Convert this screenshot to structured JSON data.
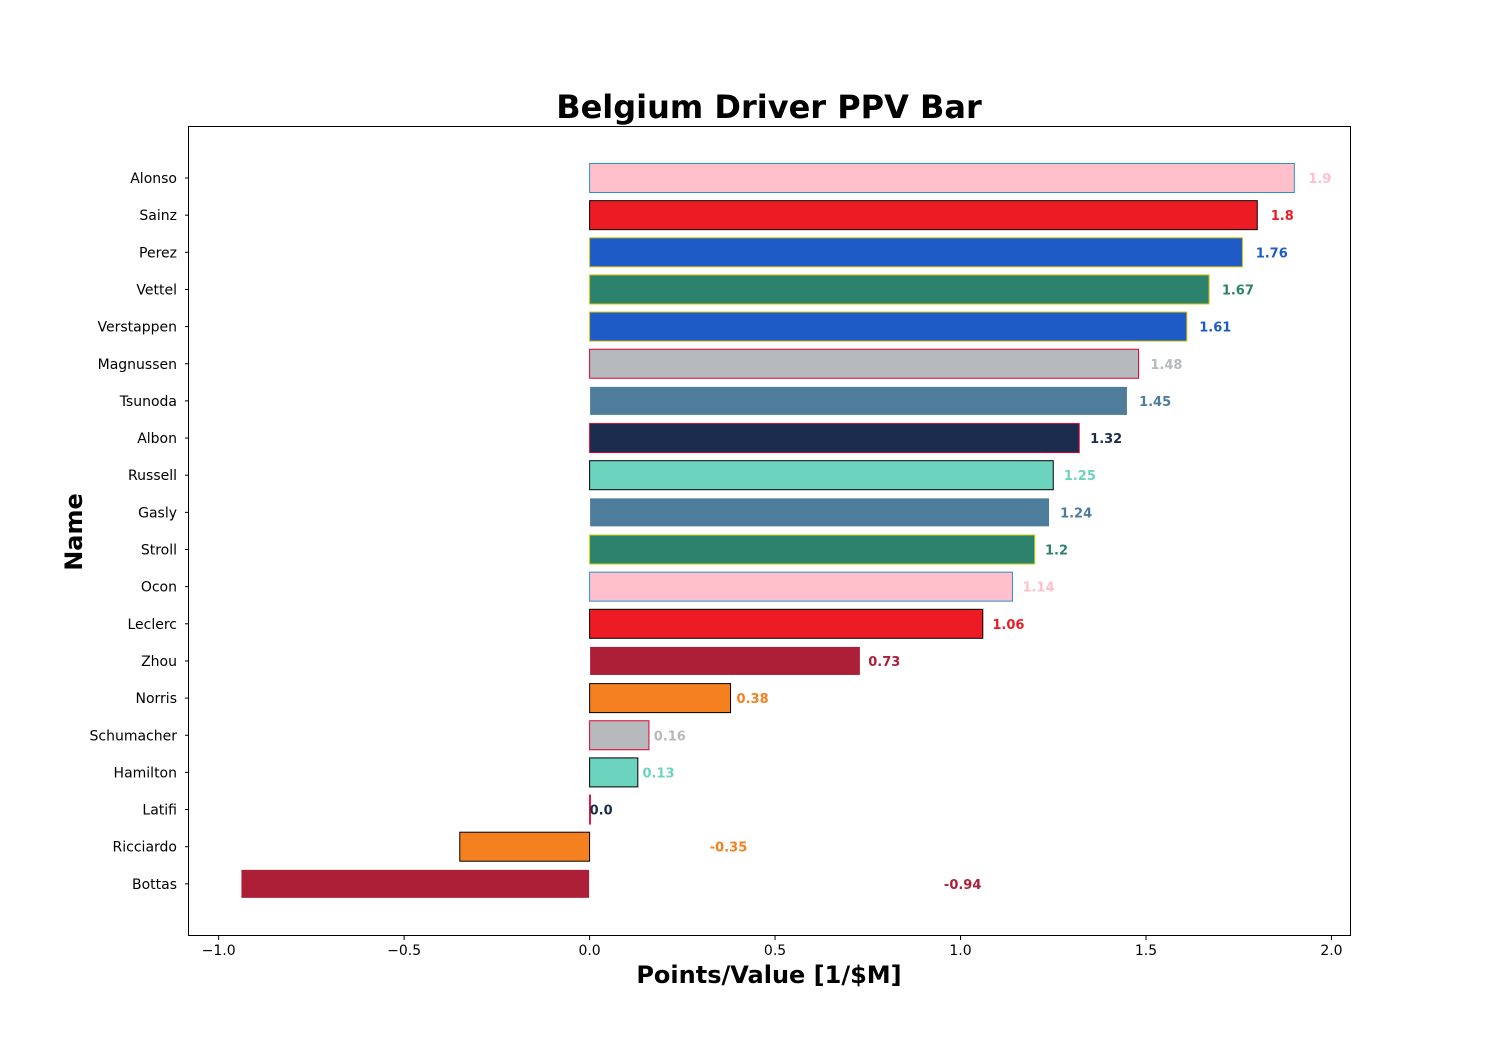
{
  "chart_data": {
    "type": "bar",
    "orientation": "horizontal",
    "title": "Belgium Driver PPV Bar",
    "xlabel": "Points/Value [1/$M]",
    "ylabel": "Name",
    "xlim": [
      -1.08,
      2.05
    ],
    "xticks": [
      -1.0,
      -0.5,
      0.0,
      0.5,
      1.0,
      1.5,
      2.0
    ],
    "xtick_labels": [
      "−1.0",
      "−0.5",
      "0.0",
      "0.5",
      "1.0",
      "1.5",
      "2.0"
    ],
    "grid": false,
    "categories": [
      "Alonso",
      "Sainz",
      "Perez",
      "Vettel",
      "Verstappen",
      "Magnussen",
      "Tsunoda",
      "Albon",
      "Russell",
      "Gasly",
      "Stroll",
      "Ocon",
      "Leclerc",
      "Zhou",
      "Norris",
      "Schumacher",
      "Hamilton",
      "Latifi",
      "Ricciardo",
      "Bottas"
    ],
    "values": [
      1.9,
      1.8,
      1.76,
      1.67,
      1.61,
      1.48,
      1.45,
      1.32,
      1.25,
      1.24,
      1.2,
      1.14,
      1.06,
      0.73,
      0.38,
      0.16,
      0.13,
      0.0,
      -0.35,
      -0.94
    ],
    "value_labels": [
      "1.9",
      "1.8",
      "1.76",
      "1.67",
      "1.61",
      "1.48",
      "1.45",
      "1.32",
      "1.25",
      "1.24",
      "1.2",
      "1.14",
      "1.06",
      "0.73",
      "0.38",
      "0.16",
      "0.13",
      "0.0",
      "-0.35",
      "-0.94"
    ],
    "colors": [
      "#FFC0CB",
      "#ED1C24",
      "#1F5BC6",
      "#2D826D",
      "#1F5BC6",
      "#B6BABD",
      "#4E7C9B",
      "#1B2C4E",
      "#6CD3BF",
      "#4E7C9B",
      "#2D826D",
      "#FFC0CB",
      "#ED1C24",
      "#AC1F37",
      "#F58020",
      "#B6BABD",
      "#6CD3BF",
      "#1B2C4E",
      "#F58020",
      "#AC1F37"
    ],
    "edge_colors": [
      "#2B8FD0",
      "#000000",
      "#D4C000",
      "#D4C000",
      "#D4C000",
      "#DC0032",
      "#FFFFFF",
      "#DC0032",
      "#000000",
      "#FFFFFF",
      "#C8D400",
      "#2B8FD0",
      "#000000",
      "#FFFFFF",
      "#000000",
      "#DC0032",
      "#000000",
      "#DC0032",
      "#000000",
      "#FFFFFF"
    ]
  }
}
